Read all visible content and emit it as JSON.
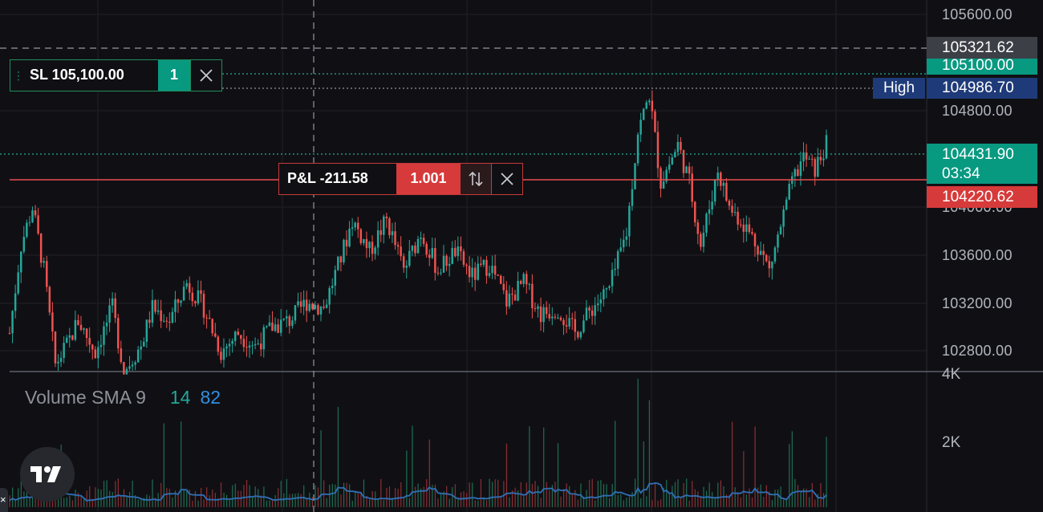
{
  "price_axis": {
    "ticks": [
      "105600.00",
      "104800.00",
      "104000.00",
      "103600.00",
      "103200.00",
      "102800.00"
    ]
  },
  "price_tags": {
    "crosshair": "105321.62",
    "stop_loss": "105100.00",
    "high_label": "High",
    "high": "104986.70",
    "last_price": "104431.90",
    "countdown": "03:34",
    "entry": "104220.62"
  },
  "stop_loss_order": {
    "label": "SL 105,100.00",
    "quantity": "1"
  },
  "position": {
    "pnl_label": "P&L -211.58",
    "quantity": "1.001"
  },
  "volume_indicator": {
    "name": "Volume SMA 9",
    "value1": "14",
    "value2": "82"
  },
  "volume_axis": {
    "tick_4k": "4K",
    "tick_2k": "2K"
  },
  "colors": {
    "background": "#101014",
    "up": "#26a69a",
    "down": "#ef5350",
    "sl_green": "#089981",
    "entry_red": "#d63a3a",
    "high_blue": "#1e3a78",
    "sma_line": "#2f6fb5"
  },
  "chart_data": {
    "type": "candlestick",
    "price_range": [
      102700,
      105650
    ],
    "waypoints": [
      [
        0,
        103000
      ],
      [
        4,
        103700
      ],
      [
        8,
        104000
      ],
      [
        12,
        103500
      ],
      [
        16,
        102750
      ],
      [
        20,
        102900
      ],
      [
        24,
        103100
      ],
      [
        30,
        102850
      ],
      [
        36,
        103200
      ],
      [
        40,
        102700
      ],
      [
        46,
        102900
      ],
      [
        50,
        103200
      ],
      [
        56,
        103100
      ],
      [
        62,
        103400
      ],
      [
        68,
        103200
      ],
      [
        74,
        102850
      ],
      [
        80,
        103000
      ],
      [
        86,
        102900
      ],
      [
        92,
        103050
      ],
      [
        98,
        103100
      ],
      [
        104,
        103250
      ],
      [
        110,
        103200
      ],
      [
        116,
        103600
      ],
      [
        120,
        103900
      ],
      [
        126,
        103650
      ],
      [
        132,
        103900
      ],
      [
        138,
        103500
      ],
      [
        144,
        103800
      ],
      [
        150,
        103500
      ],
      [
        156,
        103650
      ],
      [
        162,
        103450
      ],
      [
        168,
        103550
      ],
      [
        174,
        103250
      ],
      [
        180,
        103400
      ],
      [
        186,
        103150
      ],
      [
        192,
        103200
      ],
      [
        198,
        103000
      ],
      [
        204,
        103200
      ],
      [
        210,
        103350
      ],
      [
        216,
        103800
      ],
      [
        220,
        104600
      ],
      [
        224,
        104900
      ],
      [
        228,
        104200
      ],
      [
        234,
        104500
      ],
      [
        238,
        104200
      ],
      [
        242,
        103700
      ],
      [
        248,
        104300
      ],
      [
        252,
        104000
      ],
      [
        256,
        103900
      ],
      [
        262,
        103700
      ],
      [
        266,
        103500
      ],
      [
        270,
        103850
      ],
      [
        274,
        104200
      ],
      [
        278,
        104400
      ],
      [
        282,
        104300
      ],
      [
        286,
        104500
      ]
    ],
    "volume_sma_color": "#2f6fb5"
  }
}
